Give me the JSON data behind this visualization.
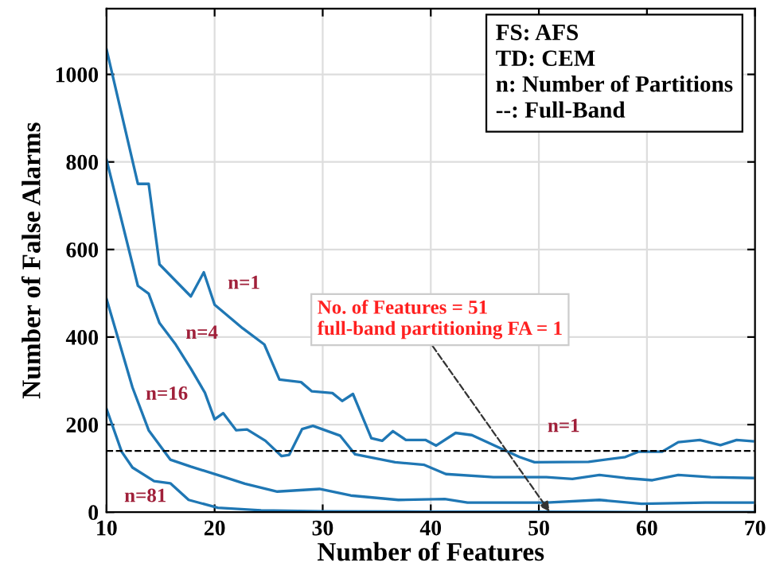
{
  "chart_data": {
    "type": "line",
    "xlabel": "Number of Features",
    "ylabel": "Number of False Alarms",
    "xlim": [
      10,
      70
    ],
    "ylim": [
      0,
      1150
    ],
    "xticks": [
      10,
      20,
      30,
      40,
      50,
      60,
      70
    ],
    "yticks": [
      0,
      200,
      400,
      600,
      800,
      1000
    ],
    "grid": true,
    "line_style": "solid",
    "series": [
      {
        "name": "n=1",
        "color": "#1f77b4",
        "x": [
          10,
          12.9,
          13.9,
          14.9,
          17.8,
          19,
          20,
          22.6,
          24.6,
          26,
          28,
          29,
          30.9,
          31.8,
          32.8,
          34.5,
          35.5,
          36.5,
          37.7,
          39.5,
          40.5,
          42.3,
          43.8,
          48.2,
          49.6,
          54.6,
          58,
          59.2,
          61.4,
          62.9,
          64.9,
          66.8,
          68.3,
          69.8
        ],
        "values": [
          1057,
          750,
          750,
          566,
          493,
          548,
          474,
          420,
          383,
          303,
          297,
          276,
          272,
          254,
          270,
          169,
          163,
          185,
          165,
          165,
          152,
          181,
          176,
          126,
          114,
          115,
          126,
          138,
          138,
          160,
          165,
          153,
          165,
          162
        ]
      },
      {
        "name": "n=4",
        "color": "#1f77b4",
        "x": [
          10,
          12.9,
          13.9,
          14.9,
          16.4,
          17.8,
          19.1,
          20,
          20.8,
          22,
          23,
          24.7,
          26.2,
          26.9,
          28.1,
          29.1,
          31.6,
          33,
          36.7,
          39.4,
          41.4,
          45.8,
          50.7,
          53.1,
          55.6,
          58,
          60.5,
          62.9,
          65.9,
          69.8
        ],
        "values": [
          805,
          517,
          499,
          432,
          383,
          328,
          273,
          212,
          226,
          187,
          189,
          163,
          128,
          131,
          190,
          197,
          175,
          132,
          114,
          108,
          87,
          80,
          80,
          76,
          85,
          78,
          73,
          85,
          80,
          78
        ]
      },
      {
        "name": "n=16",
        "color": "#1f77b4",
        "x": [
          10,
          12.4,
          13.9,
          15.9,
          17.8,
          20.8,
          22.8,
          25.8,
          29.7,
          32.6,
          37,
          41.3,
          43.4,
          50.7,
          55.6,
          59.5,
          65.4,
          69.8
        ],
        "values": [
          487,
          285,
          187,
          120,
          104,
          81,
          65,
          47,
          53,
          38,
          28,
          30,
          22,
          22,
          28,
          19,
          22,
          22
        ]
      },
      {
        "name": "n=81",
        "color": "#1f77b4",
        "x": [
          10,
          11.4,
          12.4,
          14.4,
          15.9,
          17.6,
          20.3,
          24.3,
          30,
          40,
          50,
          60,
          70
        ],
        "values": [
          236,
          138,
          102,
          71,
          66,
          28,
          10,
          4,
          2,
          1,
          1,
          0,
          0
        ]
      }
    ],
    "ref_lines": [
      {
        "axis": "y",
        "value": 140,
        "label": null,
        "color": "#000000",
        "line_style": "dashed"
      }
    ],
    "annotations": [
      {
        "text": "No. of Features = 51\nfull-band partitioning FA = 1",
        "x": 51,
        "y": 1
      },
      "FS: AFS\nTD: CEM\nn: Number of Partitions\n--: Full-Band"
    ]
  }
}
